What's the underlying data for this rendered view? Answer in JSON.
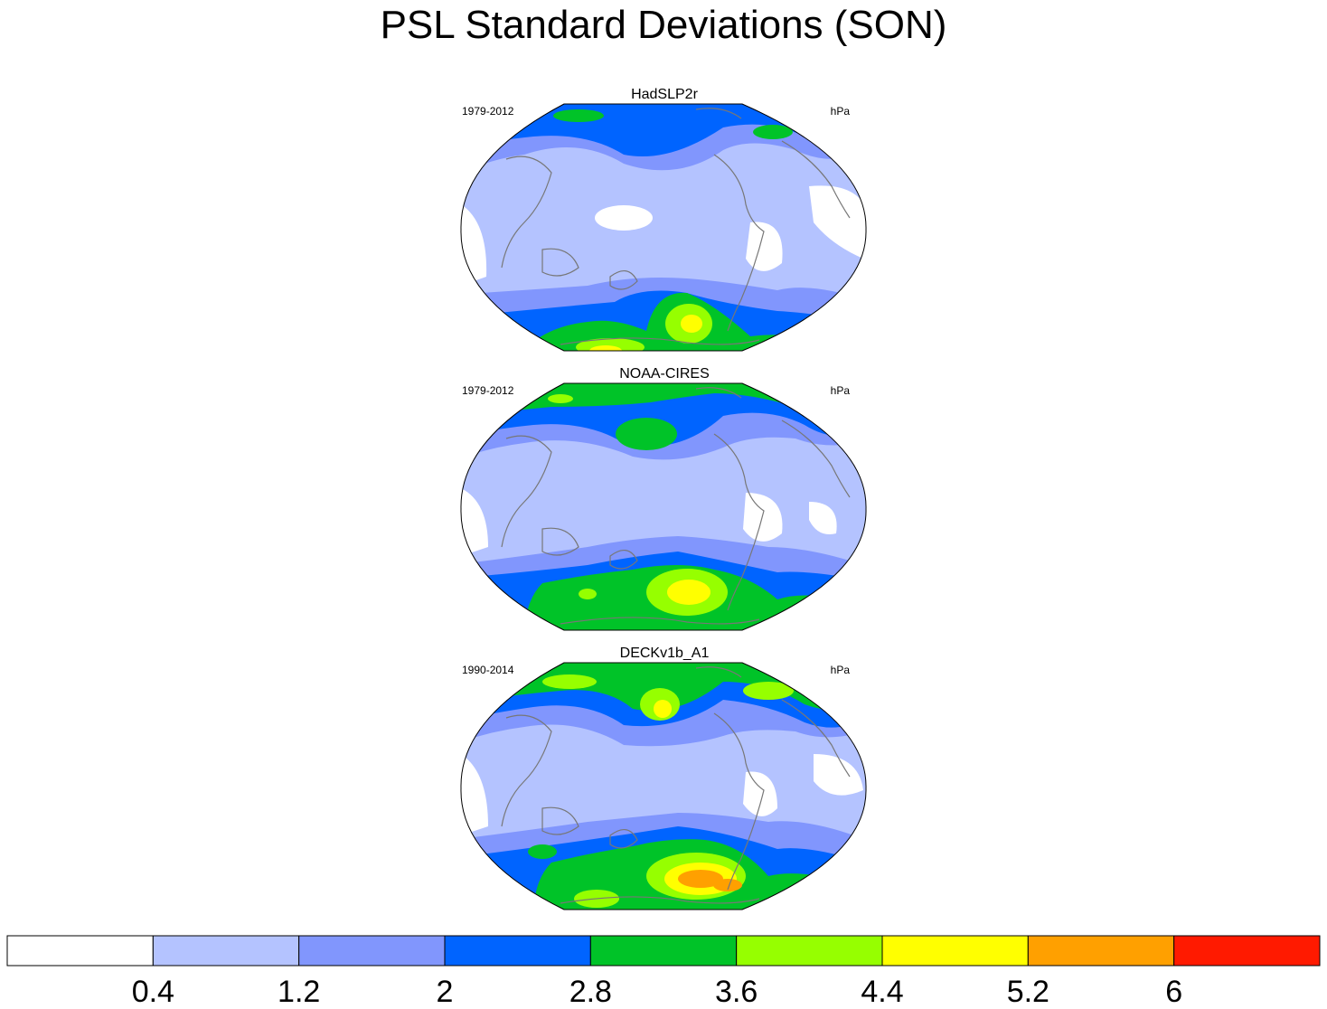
{
  "title": "PSL Standard Deviations (SON)",
  "panels": [
    {
      "name": "HadSLP2r",
      "years": "1979-2012",
      "units": "hPa"
    },
    {
      "name": "NOAA-CIRES",
      "years": "1979-2012",
      "units": "hPa"
    },
    {
      "name": "DECKv1b_A1",
      "years": "1990-2014",
      "units": "hPa"
    }
  ],
  "colorbar": {
    "labels": [
      "0.4",
      "1.2",
      "2",
      "2.8",
      "3.6",
      "4.4",
      "5.2",
      "6"
    ],
    "colors": [
      "#ffffff",
      "#b4c3ff",
      "#8196fd",
      "#0064ff",
      "#00c328",
      "#96ff00",
      "#ffff00",
      "#ffa000",
      "#ff1a00"
    ]
  }
}
